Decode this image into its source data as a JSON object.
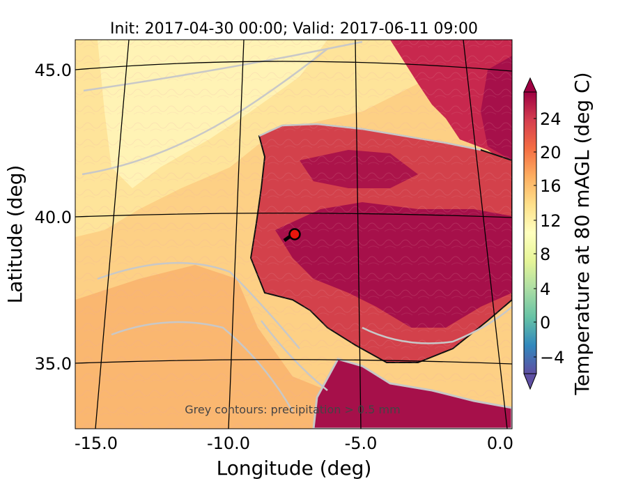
{
  "figure": {
    "title": "Init: 2017-04-30 00:00; Valid: 2017-06-11 09:00",
    "xlabel": "Longitude (deg)",
    "ylabel": "Latitude (deg)",
    "note": "Grey contours: precipitation > 0.5 mm"
  },
  "map": {
    "xticks": [
      "-15.0",
      "-10.0",
      "-5.0",
      "0.0"
    ],
    "yticks": [
      "45.0",
      "40.0",
      "35.0"
    ],
    "marker": {
      "label": "site",
      "lon": -7.7,
      "lat": 39.3,
      "color": "#e8160c"
    }
  },
  "colorbar": {
    "label": "Temperature at 80 mAGL (deg C)",
    "ticks": [
      "24",
      "20",
      "16",
      "12",
      "8",
      "4",
      "0",
      "−4"
    ],
    "range": [
      -6,
      28
    ],
    "colors": [
      "#5e4fa2",
      "#3288bd",
      "#66c2a5",
      "#abdda4",
      "#e6f598",
      "#ffffbf",
      "#fee08b",
      "#fdae61",
      "#f46d43",
      "#d53e4f",
      "#9e0142"
    ]
  },
  "colors": {
    "ocean_warm": "#fdd085",
    "ocean_cool": "#fff3b5",
    "land_hot": "#a6104a",
    "land_mid": "#d3414b",
    "contour": "#c8c8c8"
  }
}
